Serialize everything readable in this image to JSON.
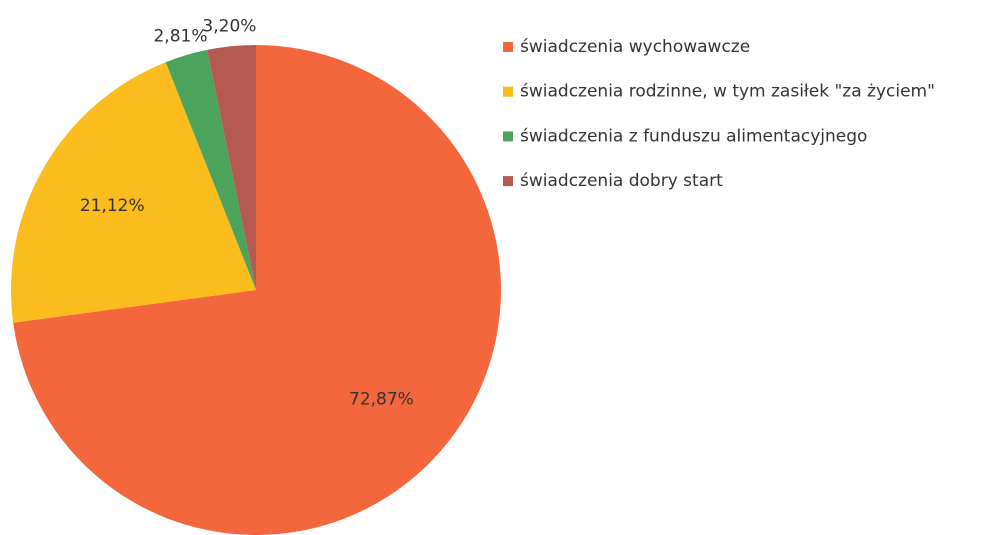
{
  "chart_data": {
    "type": "pie",
    "categories": [
      "świadczenia wychowawcze",
      "świadczenia rodzinne, w tym zasiłek \"za życiem\"",
      "świadczenia z funduszu alimentacyjnego",
      "świadczenia dobry start"
    ],
    "values": [
      72.87,
      21.12,
      2.81,
      3.2
    ],
    "value_labels": [
      "72,87%",
      "21,12%",
      "2,81%",
      "3,20%"
    ],
    "colors": [
      "#f4663c",
      "#fbbd1e",
      "#4ca35c",
      "#b45a52"
    ],
    "legend": "right"
  }
}
